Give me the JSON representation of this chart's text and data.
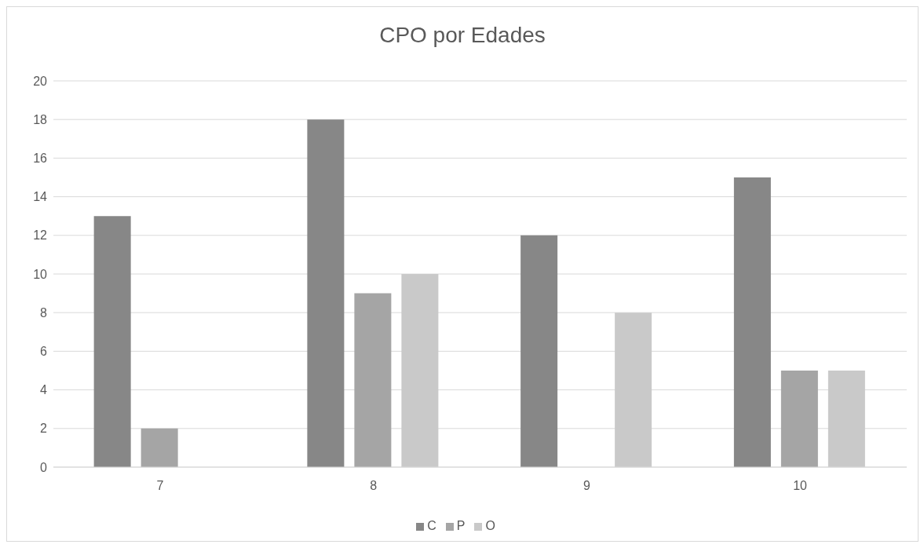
{
  "chart_data": {
    "type": "bar",
    "title": "CPO por Edades",
    "categories": [
      "7",
      "8",
      "9",
      "10"
    ],
    "series": [
      {
        "name": "C",
        "color": "#878787",
        "values": [
          13,
          18,
          12,
          15
        ]
      },
      {
        "name": "P",
        "color": "#a5a5a5",
        "values": [
          2,
          9,
          0,
          5
        ]
      },
      {
        "name": "O",
        "color": "#c9c9c9",
        "values": [
          0,
          10,
          8,
          5
        ]
      }
    ],
    "ylim": [
      0,
      20
    ],
    "yticks": [
      0,
      2,
      4,
      6,
      8,
      10,
      12,
      14,
      16,
      18,
      20
    ],
    "grid": "y",
    "legend": "bottom"
  }
}
